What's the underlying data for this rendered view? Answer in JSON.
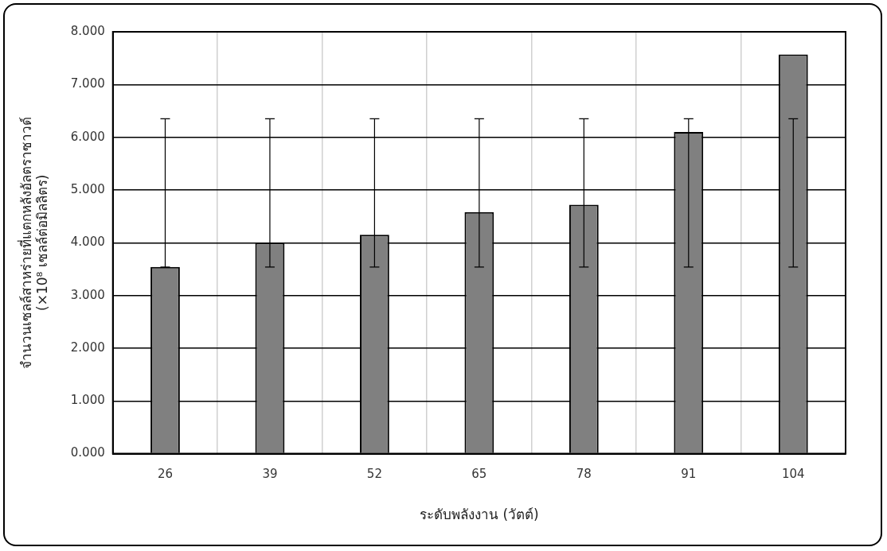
{
  "chart_data": {
    "type": "bar",
    "xlabel": "ระดับพลังงาน (วัตต์)",
    "ylabel": [
      "จำนวนเซลล์สาหร่ายที่แตกหลังอัลตราซาวด์",
      "(×10⁸ เซลล์ต่อมิลลิตร)"
    ],
    "categories": [
      "26",
      "39",
      "52",
      "65",
      "78",
      "91",
      "104"
    ],
    "values": [
      3.54,
      4.0,
      4.15,
      4.58,
      4.72,
      6.1,
      7.57
    ],
    "errors": [
      [
        3.54,
        6.35
      ],
      [
        3.54,
        6.35
      ],
      [
        3.54,
        6.35
      ],
      [
        3.54,
        6.35
      ],
      [
        3.54,
        6.35
      ],
      [
        3.54,
        6.35
      ],
      [
        3.54,
        6.35
      ]
    ],
    "color": "#808080",
    "ylim": [
      0,
      8
    ],
    "yticks": [
      {
        "value": 0,
        "label": "0.000"
      },
      {
        "value": 1,
        "label": "1.000"
      },
      {
        "value": 2,
        "label": "2.000"
      },
      {
        "value": 3,
        "label": "3.000"
      },
      {
        "value": 4,
        "label": "4.000"
      },
      {
        "value": 5,
        "label": "5.000"
      },
      {
        "value": 6,
        "label": "6.000"
      },
      {
        "value": 7,
        "label": "7.000"
      },
      {
        "value": 8,
        "label": "8.000"
      }
    ],
    "grid": true,
    "legend": false
  }
}
